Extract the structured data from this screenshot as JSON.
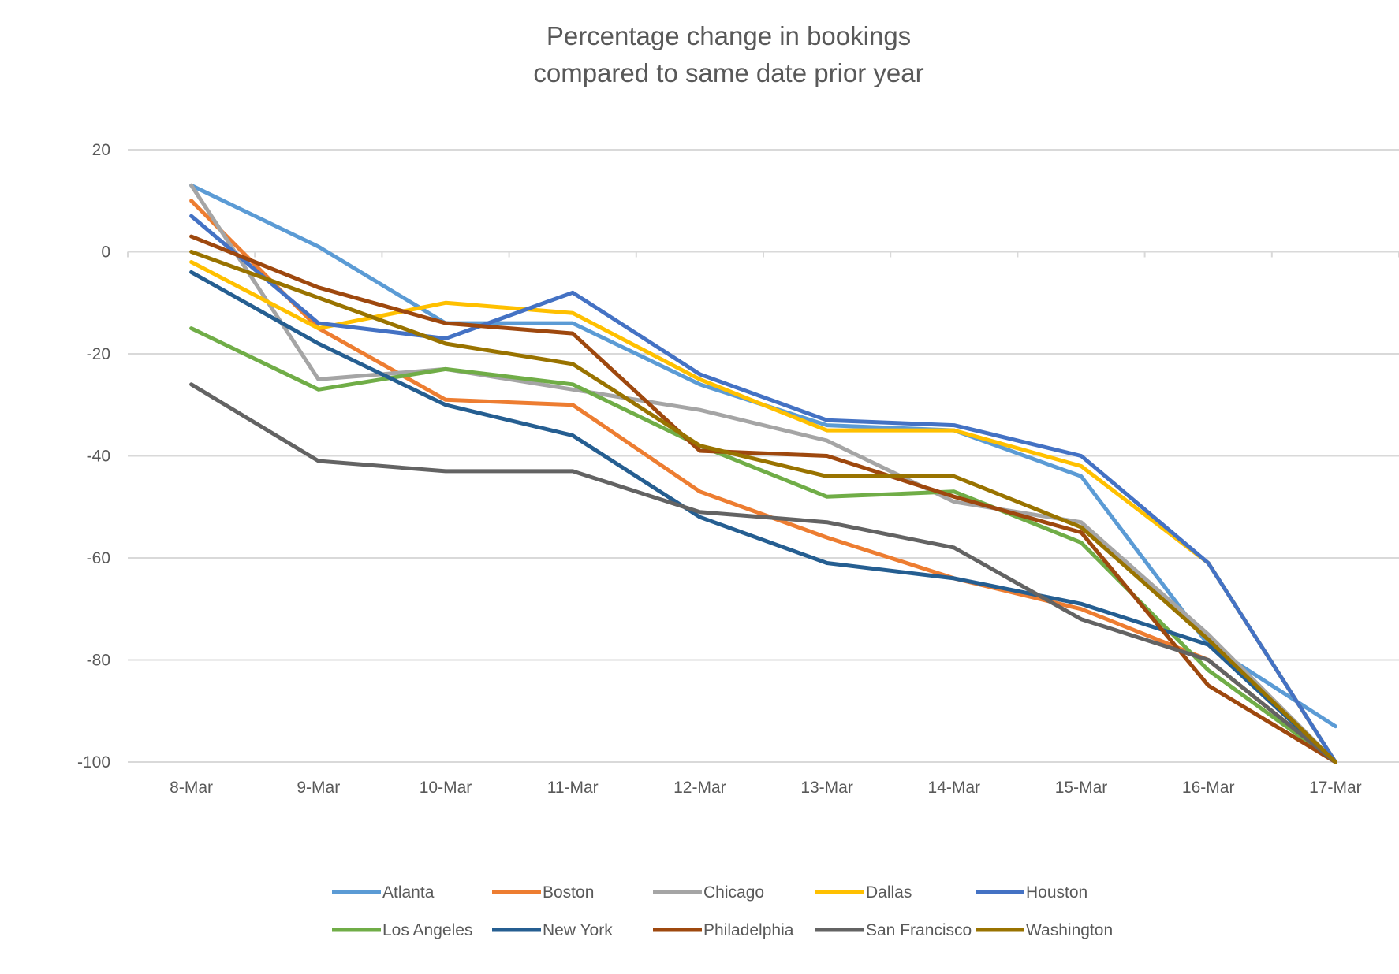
{
  "chart_data": {
    "type": "line",
    "title": [
      "Percentage change in bookings",
      "compared to same date prior year"
    ],
    "xlabel": "",
    "ylabel": "",
    "ylim": [
      -100,
      20
    ],
    "yticks": [
      20,
      0,
      -20,
      -40,
      -60,
      -80,
      -100
    ],
    "grid": true,
    "legend": "bottom",
    "categories": [
      "8-Mar",
      "9-Mar",
      "10-Mar",
      "11-Mar",
      "12-Mar",
      "13-Mar",
      "14-Mar",
      "15-Mar",
      "16-Mar",
      "17-Mar"
    ],
    "series": [
      {
        "name": "Atlanta",
        "color": "#5B9BD5",
        "values": [
          13,
          1,
          -14,
          -14,
          -26,
          -34,
          -35,
          -44,
          -77,
          -93
        ]
      },
      {
        "name": "Boston",
        "color": "#ED7D31",
        "values": [
          10,
          -15,
          -29,
          -30,
          -47,
          -56,
          -64,
          -70,
          -80,
          -100
        ]
      },
      {
        "name": "Chicago",
        "color": "#A5A5A5",
        "values": [
          13,
          -25,
          -23,
          -27,
          -31,
          -37,
          -49,
          -53,
          -75,
          -100
        ]
      },
      {
        "name": "Dallas",
        "color": "#FFC000",
        "values": [
          -2,
          -15,
          -10,
          -12,
          -25,
          -35,
          -35,
          -42,
          -61,
          -100
        ]
      },
      {
        "name": "Houston",
        "color": "#4472C4",
        "values": [
          7,
          -14,
          -17,
          -8,
          -24,
          -33,
          -34,
          -40,
          -61,
          -100
        ]
      },
      {
        "name": "Los Angeles",
        "color": "#70AD47",
        "values": [
          -15,
          -27,
          -23,
          -26,
          -38,
          -48,
          -47,
          -57,
          -82,
          -100
        ]
      },
      {
        "name": "New York",
        "color": "#255E91",
        "values": [
          -4,
          -18,
          -30,
          -36,
          -52,
          -61,
          -64,
          -69,
          -77,
          -100
        ]
      },
      {
        "name": "Philadelphia",
        "color": "#9E480E",
        "values": [
          3,
          -7,
          -14,
          -16,
          -39,
          -40,
          -48,
          -55,
          -85,
          -100
        ]
      },
      {
        "name": "San Francisco",
        "color": "#636363",
        "values": [
          -26,
          -41,
          -43,
          -43,
          -51,
          -53,
          -58,
          -72,
          -80,
          -100
        ]
      },
      {
        "name": "Washington",
        "color": "#997300",
        "values": [
          0,
          -9,
          -18,
          -22,
          -38,
          -44,
          -44,
          -54,
          -76,
          -100
        ]
      }
    ]
  }
}
